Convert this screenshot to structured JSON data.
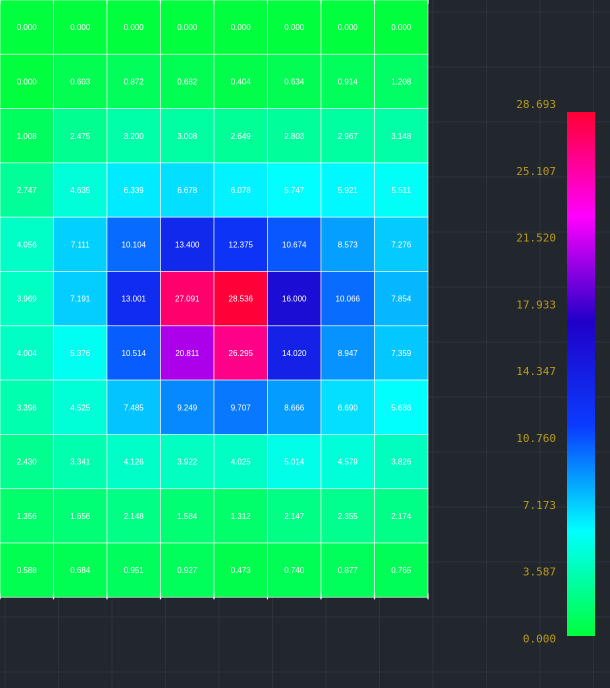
{
  "colors": {
    "background": "#22262d",
    "grid_lines": "#2d323b",
    "cell_border": "#ffffff",
    "label_text": "#b89a1c",
    "value_text": "#ffffff"
  },
  "colorbar": {
    "ticks": [
      "28.693",
      "25.107",
      "21.520",
      "17.933",
      "14.347",
      "10.760",
      "7.173",
      "3.587",
      "0.000"
    ],
    "stops": [
      "#00ff3c",
      "#00ffff",
      "#0a3cff",
      "#2000c8",
      "#ff00ff",
      "#ff0033"
    ]
  },
  "chart_data": {
    "type": "heatmap",
    "title": "",
    "xlabel": "",
    "ylabel": "",
    "range": [
      0,
      28.693
    ],
    "values": [
      [
        "0.000",
        "0.000",
        "0.000",
        "0.000",
        "0.000",
        "0.000",
        "0.000",
        "0.000"
      ],
      [
        "0.000",
        "0.603",
        "0.872",
        "0.682",
        "0.404",
        "0.634",
        "0.914",
        "1.208"
      ],
      [
        "1.008",
        "2.475",
        "3.200",
        "3.008",
        "2.649",
        "2.803",
        "2.967",
        "3.148"
      ],
      [
        "2.747",
        "4.635",
        "6.339",
        "6.678",
        "6.078",
        "5.747",
        "5.921",
        "5.511"
      ],
      [
        "4.056",
        "7.111",
        "10.104",
        "13.400",
        "12.375",
        "10.674",
        "8.573",
        "7.276"
      ],
      [
        "3.969",
        "7.191",
        "13.001",
        "27.091",
        "28.536",
        "16.000",
        "10.066",
        "7.854"
      ],
      [
        "4.004",
        "5.376",
        "10.514",
        "20.811",
        "26.295",
        "14.020",
        "8.947",
        "7.359"
      ],
      [
        "3.396",
        "4.525",
        "7.485",
        "9.249",
        "9.707",
        "8.666",
        "6.690",
        "5.686"
      ],
      [
        "2.430",
        "3.341",
        "4.126",
        "3.922",
        "4.025",
        "5.014",
        "4.579",
        "3.826"
      ],
      [
        "1.356",
        "1.656",
        "2.148",
        "1.584",
        "1.312",
        "2.147",
        "2.355",
        "2.174"
      ],
      [
        "0.588",
        "0.684",
        "0.951",
        "0.927",
        "0.473",
        "0.740",
        "0.877",
        "0.765"
      ]
    ]
  }
}
